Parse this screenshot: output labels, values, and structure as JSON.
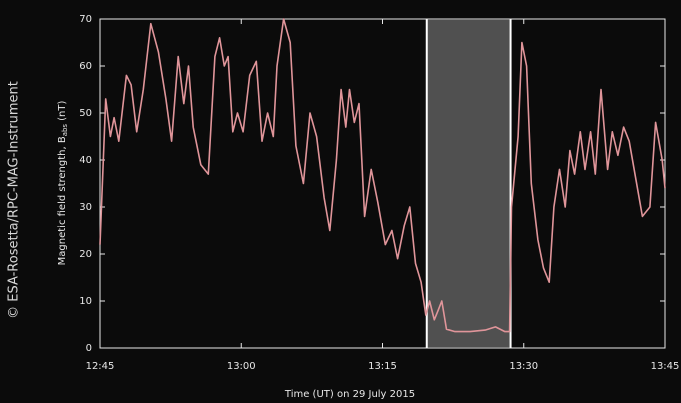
{
  "watermark": "© ESA-Rosetta/RPC-MAG-Instrument",
  "chart_data": {
    "type": "line",
    "y_label": {
      "main": "Magnetic field strength, B",
      "sub": "abs",
      "unit": "(nT)"
    },
    "x_label": "Time (UT) on 29 July 2015",
    "x": [
      765,
      765.6,
      766.1,
      766.5,
      767.0,
      767.8,
      768.3,
      768.9,
      769.6,
      770.4,
      771.2,
      772.0,
      772.6,
      773.3,
      773.9,
      774.4,
      774.9,
      775.7,
      776.5,
      777.2,
      777.7,
      778.2,
      778.6,
      779.1,
      779.6,
      780.2,
      780.9,
      781.6,
      782.2,
      782.8,
      783.4,
      783.8,
      784.5,
      785.2,
      785.8,
      786.6,
      787.3,
      788.0,
      788.8,
      789.4,
      790.1,
      790.6,
      791.1,
      791.5,
      792.0,
      792.5,
      793.1,
      793.8,
      794.5,
      795.3,
      796.0,
      796.6,
      797.3,
      797.9,
      798.5,
      799.1,
      799.6,
      800.0,
      800.5,
      800.9,
      801.3,
      801.8,
      802.7,
      804.3,
      805.9,
      807.0,
      808.0,
      808.5,
      808.7,
      809.4,
      809.8,
      810.3,
      810.8,
      811.5,
      812.1,
      812.7,
      813.2,
      813.8,
      814.4,
      814.9,
      815.4,
      816.0,
      816.5,
      817.1,
      817.6,
      818.2,
      818.9,
      819.4,
      820.0,
      820.6,
      821.2,
      821.9,
      822.6,
      823.4,
      824.0,
      824.7,
      825
    ],
    "series": [
      {
        "color": "#e0959a",
        "values": [
          22,
          53,
          45,
          49,
          44,
          58,
          56,
          46,
          55,
          69,
          63,
          53,
          44,
          62,
          52,
          60,
          47,
          39,
          37,
          62,
          66,
          60,
          62,
          46,
          50,
          46,
          58,
          61,
          44,
          50,
          45,
          60,
          70,
          65,
          43,
          35,
          50,
          45,
          32,
          25,
          40,
          55,
          47,
          55,
          48,
          52,
          28,
          38,
          31,
          22,
          25,
          19,
          26,
          30,
          18,
          14,
          7,
          10,
          6,
          8,
          10,
          4,
          3.5,
          3.5,
          3.8,
          4.5,
          3.5,
          3.5,
          30,
          45,
          65,
          60,
          35,
          23,
          17,
          14,
          30,
          38,
          30,
          42,
          37,
          46,
          38,
          46,
          37,
          55,
          38,
          46,
          41,
          47,
          44,
          36,
          28,
          30,
          48,
          40,
          34
        ]
      }
    ],
    "highlight": [
      799.7,
      808.6
    ],
    "xlim": [
      765,
      825
    ],
    "xticks": [
      {
        "value": 765,
        "label": "12:45"
      },
      {
        "value": 780,
        "label": "13:00"
      },
      {
        "value": 795,
        "label": "13:15"
      },
      {
        "value": 810,
        "label": "13:30"
      },
      {
        "value": 825,
        "label": "13:45"
      }
    ],
    "ylim": [
      0,
      70
    ],
    "yticks": [
      0,
      10,
      20,
      30,
      40,
      50,
      60,
      70
    ]
  }
}
